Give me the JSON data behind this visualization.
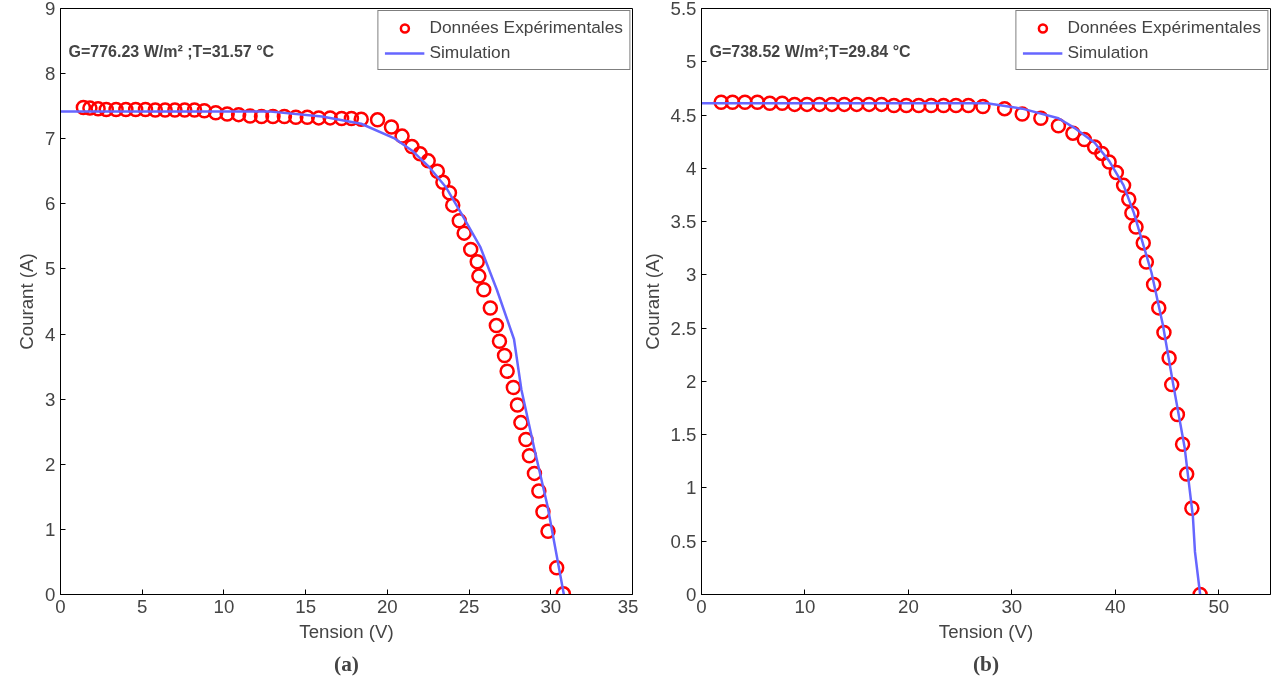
{
  "chart_data": [
    {
      "type": "scatter",
      "xlabel": "Tension (V)",
      "ylabel": "Courant (A)",
      "xlim": [
        0,
        35
      ],
      "ylim": [
        0,
        9
      ],
      "xticks": [
        0,
        5,
        10,
        15,
        20,
        25,
        30,
        35
      ],
      "yticks": [
        0,
        1,
        2,
        3,
        4,
        5,
        6,
        7,
        8,
        9
      ],
      "legend": "top right",
      "grid": false,
      "annotations": [
        "G=776.23 W/m² ;T=31.57 °C",
        "(a)"
      ],
      "series": [
        {
          "name": "Données Expérimentales",
          "type": "scatter",
          "marker": "circle",
          "color": "#ff0000",
          "x": [
            1.4,
            1.8,
            2.3,
            2.8,
            3.4,
            4.0,
            4.6,
            5.2,
            5.8,
            6.4,
            7.0,
            7.6,
            8.2,
            8.8,
            9.5,
            10.2,
            10.9,
            11.6,
            12.3,
            13.0,
            13.7,
            14.4,
            15.1,
            15.8,
            16.5,
            17.2,
            17.8,
            18.4,
            19.4,
            20.25,
            20.9,
            21.5,
            22.0,
            22.5,
            23.06,
            23.4,
            23.8,
            24.0,
            24.4,
            24.7,
            25.1,
            25.5,
            25.6,
            25.9,
            26.3,
            26.67,
            26.86,
            27.17,
            27.33,
            27.71,
            27.96,
            28.17,
            28.48,
            28.69,
            29.0,
            29.27,
            29.52,
            29.83,
            30.36,
            30.77
          ],
          "values": [
            7.48,
            7.47,
            7.46,
            7.45,
            7.45,
            7.45,
            7.45,
            7.45,
            7.44,
            7.44,
            7.44,
            7.44,
            7.44,
            7.43,
            7.4,
            7.38,
            7.37,
            7.35,
            7.34,
            7.34,
            7.34,
            7.33,
            7.33,
            7.32,
            7.32,
            7.31,
            7.31,
            7.3,
            7.29,
            7.18,
            7.04,
            6.88,
            6.77,
            6.66,
            6.5,
            6.33,
            6.17,
            5.98,
            5.74,
            5.55,
            5.3,
            5.11,
            4.89,
            4.68,
            4.4,
            4.13,
            3.89,
            3.67,
            3.43,
            3.18,
            2.91,
            2.64,
            2.38,
            2.13,
            1.86,
            1.59,
            1.27,
            0.97,
            0.41,
            0.01
          ]
        },
        {
          "name": "Simulation",
          "type": "line",
          "line_style": "solid",
          "color": "#6666ff",
          "x": [
            0,
            12.7,
            16,
            18.4,
            20.4,
            21.5,
            22.5,
            23.6,
            24.6,
            25.7,
            26.7,
            27.75,
            28.2,
            29.0,
            29.8,
            30.36,
            30.8
          ],
          "values": [
            7.42,
            7.42,
            7.34,
            7.23,
            7.01,
            6.82,
            6.58,
            6.25,
            5.82,
            5.33,
            4.68,
            3.92,
            3.15,
            2.23,
            1.36,
            0.6,
            0
          ]
        }
      ]
    },
    {
      "type": "scatter",
      "xlabel": "Tension (V)",
      "ylabel": "Courant (A)",
      "xlim": [
        0,
        55
      ],
      "ylim": [
        0,
        5.5
      ],
      "xticks": [
        0,
        10,
        20,
        30,
        40,
        50
      ],
      "yticks": [
        0,
        0.5,
        1,
        1.5,
        2,
        2.5,
        3,
        3.5,
        4,
        4.5,
        5,
        5.5
      ],
      "legend": "top right",
      "grid": false,
      "annotations": [
        "G=738.52 W/m²;T=29.84 °C",
        "(b)"
      ],
      "series": [
        {
          "name": "Données Expérimentales",
          "type": "scatter",
          "marker": "circle",
          "color": "#ff0000",
          "x": [
            1.9,
            3.0,
            4.2,
            5.4,
            6.6,
            7.8,
            9.0,
            10.2,
            11.4,
            12.6,
            13.8,
            15.0,
            16.2,
            17.4,
            18.6,
            19.8,
            21.0,
            22.2,
            23.4,
            24.6,
            25.8,
            27.2,
            29.3,
            31.0,
            32.8,
            34.5,
            35.9,
            37.0,
            38.0,
            38.7,
            39.4,
            40.1,
            40.8,
            41.3,
            41.6,
            42.0,
            42.7,
            43.0,
            43.7,
            44.2,
            44.7,
            45.2,
            45.45,
            46.0,
            46.5,
            46.9,
            47.4,
            48.2
          ],
          "values": [
            4.62,
            4.62,
            4.62,
            4.62,
            4.61,
            4.61,
            4.6,
            4.6,
            4.6,
            4.6,
            4.6,
            4.6,
            4.6,
            4.6,
            4.59,
            4.59,
            4.59,
            4.59,
            4.59,
            4.59,
            4.59,
            4.58,
            4.56,
            4.51,
            4.47,
            4.4,
            4.33,
            4.27,
            4.2,
            4.14,
            4.06,
            3.96,
            3.84,
            3.71,
            3.58,
            3.45,
            3.3,
            3.12,
            2.91,
            2.69,
            2.46,
            2.22,
            1.97,
            1.69,
            1.41,
            1.13,
            0.81,
            0.0
          ]
        },
        {
          "name": "Simulation",
          "type": "line",
          "line_style": "solid",
          "color": "#6666ff",
          "x": [
            0,
            27.6,
            31,
            34.5,
            36.2,
            38,
            39.4,
            40.8,
            41.8,
            43.5,
            44.6,
            45.6,
            46.7,
            47.5,
            47.7,
            48.2
          ],
          "values": [
            4.61,
            4.61,
            4.56,
            4.47,
            4.37,
            4.24,
            4.07,
            3.84,
            3.58,
            3.02,
            2.53,
            1.97,
            1.38,
            0.73,
            0.4,
            0
          ]
        }
      ]
    }
  ]
}
